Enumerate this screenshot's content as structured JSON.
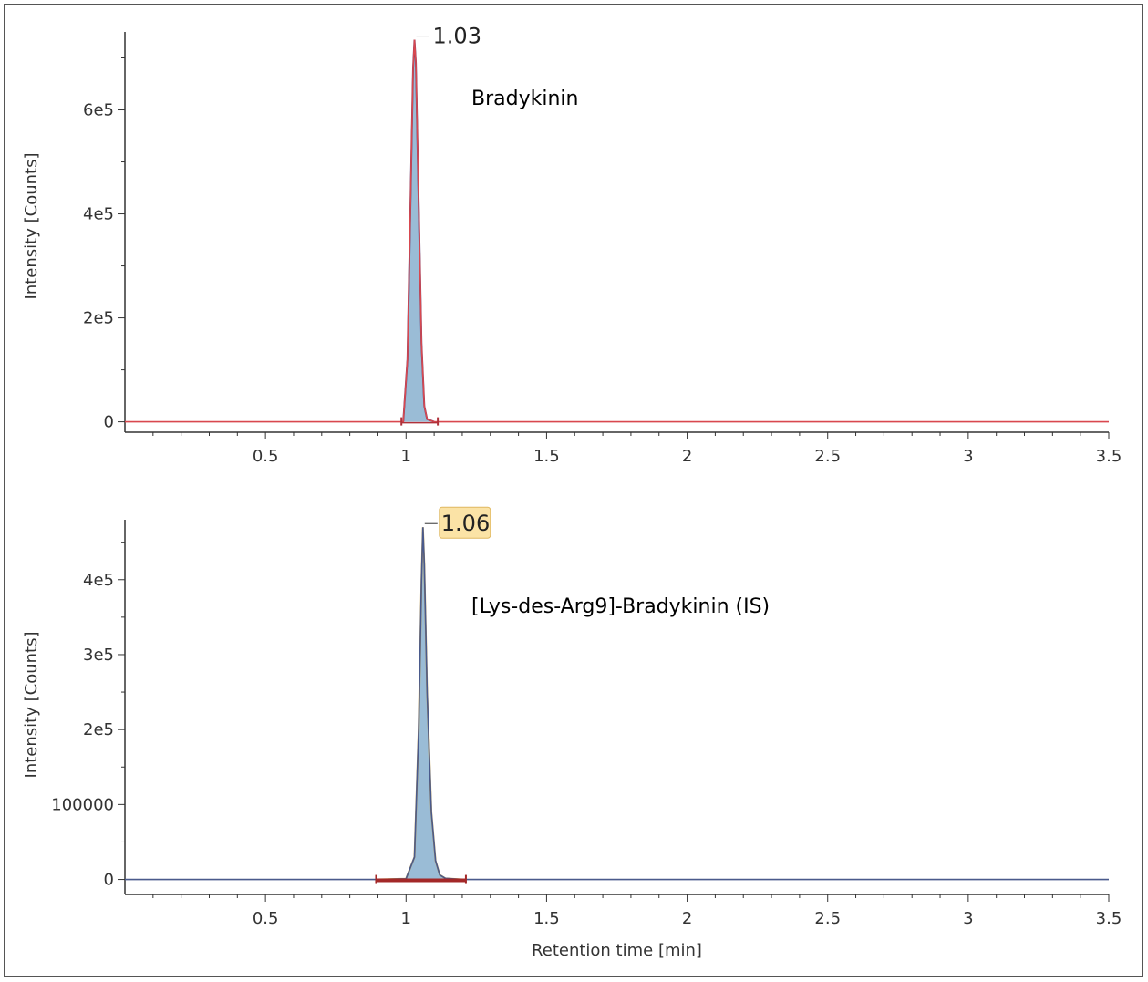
{
  "chart_data": [
    {
      "type": "line",
      "ylabel": "Intensity [Counts]",
      "xlabel": "",
      "xlim": [
        0,
        3.5
      ],
      "ylim": [
        -20000,
        750000
      ],
      "x_ticks": [
        0.5,
        1,
        1.5,
        2,
        2.5,
        3,
        3.5
      ],
      "x_tick_labels": [
        "0.5",
        "1",
        "1.5",
        "2",
        "2.5",
        "3",
        "3.5"
      ],
      "y_ticks": [
        0,
        200000,
        400000,
        600000
      ],
      "y_tick_labels": [
        "0",
        "2e5",
        "4e5",
        "6e5"
      ],
      "annotation": "Bradykinin",
      "peak_label": "1.03",
      "peak_label_highlight": false,
      "trace_color": "#d9484f",
      "fill_color": "#8fb5d1",
      "peak_outline_color": "#5a3a70",
      "series": [
        {
          "x": [
            0,
            0.5,
            0.9,
            0.99,
            1.005,
            1.015,
            1.025,
            1.03,
            1.035,
            1.045,
            1.055,
            1.065,
            1.075,
            1.1,
            1.2,
            1.5,
            2,
            2.5,
            3,
            3.5
          ],
          "values": [
            0,
            0,
            0,
            0,
            120000,
            400000,
            680000,
            735000,
            690000,
            420000,
            150000,
            30000,
            5000,
            0,
            0,
            0,
            0,
            0,
            0,
            0
          ]
        }
      ]
    },
    {
      "type": "line",
      "ylabel": "Intensity [Counts]",
      "xlabel": "Retention time [min]",
      "xlim": [
        0,
        3.5
      ],
      "ylim": [
        -20000,
        480000
      ],
      "x_ticks": [
        0.5,
        1,
        1.5,
        2,
        2.5,
        3,
        3.5
      ],
      "x_tick_labels": [
        "0.5",
        "1",
        "1.5",
        "2",
        "2.5",
        "3",
        "3.5"
      ],
      "y_ticks": [
        0,
        100000,
        200000,
        300000,
        400000
      ],
      "y_tick_labels": [
        "0",
        "100000",
        "2e5",
        "3e5",
        "4e5"
      ],
      "annotation": "[Lys-des-Arg9]-Bradykinin (IS)",
      "peak_label": "1.06",
      "peak_label_highlight": true,
      "trace_color": "#4a5a8c",
      "fill_color": "#8fb5d1",
      "peak_outline_color": "#c7a04a",
      "series": [
        {
          "x": [
            0,
            0.5,
            0.9,
            1.0,
            1.03,
            1.045,
            1.055,
            1.06,
            1.065,
            1.075,
            1.09,
            1.105,
            1.12,
            1.14,
            1.2,
            1.5,
            2,
            2.5,
            3,
            3.5
          ],
          "values": [
            0,
            0,
            0,
            1000,
            30000,
            200000,
            400000,
            470000,
            420000,
            250000,
            90000,
            25000,
            6000,
            1500,
            0,
            0,
            0,
            0,
            0,
            0
          ]
        }
      ]
    }
  ]
}
